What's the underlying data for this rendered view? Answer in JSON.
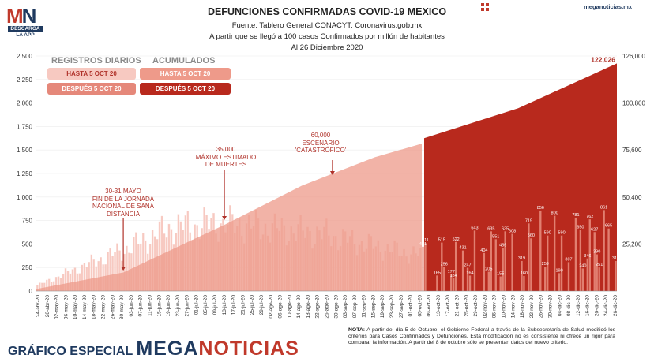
{
  "header": {
    "title": "DEFUNCIONES CONFIRMADAS COVID-19 MEXICO",
    "source": "Fuente: Tablero General CONACYT. Coronavirus.gob.mx",
    "subtitle": "A partir que se llegó a 100 casos Confirmados por millón de habitantes",
    "date": "Al 26 Diciembre 2020",
    "brand_url": "meganoticias.mx"
  },
  "logo": {
    "mark_m": "M",
    "mark_n": "N",
    "line1": "DESCARGA",
    "line2": "LA APP"
  },
  "legend": {
    "diarios_title": "REGISTROS DIARIOS",
    "acumulados_title": "ACUMULADOS",
    "hasta": "HASTA 5 OCT 20",
    "despues": "DESPUÉS 5 OCT 20"
  },
  "annotations": {
    "a1": [
      "30-31 MAYO",
      "FIN DE LA JORNADA",
      "NACIONAL DE SANA",
      "DISTANCIA"
    ],
    "a2": [
      "35,000",
      "MÁXIMO ESTIMADO",
      "DE MUERTES"
    ],
    "a3": [
      "60,000",
      "ESCENARIO",
      "'CATASTRÓFICO'"
    ]
  },
  "note": {
    "label": "NOTA:",
    "text": "A partir del día 5 de Octubre, el Gobierno Federal a través de la Subsecretaría de Salud modificó los criterios para Casos Confirmados y Defunciones. Esta modificación no es consistente ni ofrece un rigor para comparar la información. A partir del 8 de octubre sólo se presentan datos del nuevo criterio."
  },
  "footer": {
    "prefix": "GRÁFICO ESPECIAL",
    "brand_a": "MEGA",
    "brand_b": "NOTICIAS"
  },
  "colors": {
    "daily_before": "#f7c9c1",
    "daily_after": "#e5887a",
    "cumulative_before": "#ee9a8a",
    "cumulative_after": "#b8291d",
    "accent": "#b0322a",
    "navy": "#1f3a5f"
  },
  "chart_data": {
    "type": "bar",
    "start_date": "2020-04-24",
    "end_date": "2020-12-26",
    "split_date": "2020-10-05",
    "left_axis": {
      "ylim": [
        0,
        2500
      ],
      "ticks": [
        "0",
        "250",
        "500",
        "750",
        "1,000",
        "1,250",
        "1,500",
        "1,750",
        "2,000",
        "2,250",
        "2,500"
      ]
    },
    "right_axis": {
      "ylim": [
        0,
        126000
      ],
      "ticks": [
        "25,200",
        "50,400",
        "75,600",
        "100,800",
        "126,000"
      ]
    },
    "x_tick_labels": [
      "24-abr-20",
      "28-abr-20",
      "02-may-20",
      "06-may-20",
      "10-may-20",
      "14-may-20",
      "18-may-20",
      "22-may-20",
      "26-may-20",
      "30-may-20",
      "03-jun-20",
      "07-jun-20",
      "11-jun-20",
      "15-jun-20",
      "19-jun-20",
      "23-jun-20",
      "27-jun-20",
      "01-jul-20",
      "05-jul-20",
      "09-jul-20",
      "13-jul-20",
      "17-jul-20",
      "21-jul-20",
      "25-jul-20",
      "29-jul-20",
      "02-ago-20",
      "06-ago-20",
      "10-ago-20",
      "14-ago-20",
      "18-ago-20",
      "22-ago-20",
      "26-ago-20",
      "30-ago-20",
      "03-sep-20",
      "07-sep-20",
      "11-sep-20",
      "15-sep-20",
      "19-sep-20",
      "23-sep-20",
      "27-sep-20",
      "01-oct-20",
      "05-oct-20",
      "09-oct-20",
      "13-oct-20",
      "17-oct-20",
      "21-oct-20",
      "25-oct-20",
      "29-oct-20",
      "02-nov-20",
      "06-nov-20",
      "10-nov-20",
      "14-nov-20",
      "18-nov-20",
      "22-nov-20",
      "26-nov-20",
      "30-nov-20",
      "04-dic-20",
      "08-dic-20",
      "12-dic-20",
      "16-dic-20",
      "20-dic-20",
      "24-dic-20",
      "26-dic-20"
    ],
    "cumulative_points": [
      {
        "date": "2020-04-24",
        "value": 1070
      },
      {
        "date": "2020-05-31",
        "value": 9930
      },
      {
        "date": "2020-07-13",
        "value": 35490
      },
      {
        "date": "2020-08-15",
        "value": 56500
      },
      {
        "date": "2020-09-15",
        "value": 71700
      },
      {
        "date": "2020-10-05",
        "value": 79000
      },
      {
        "date": "2020-10-06",
        "value": 81900
      },
      {
        "date": "2020-11-15",
        "value": 98000
      },
      {
        "date": "2020-12-26",
        "value": 122026
      }
    ],
    "cumulative_final_label": "122,026",
    "daily_before_points": [
      {
        "date": "2020-04-24",
        "value": 60
      },
      {
        "date": "2020-05-15",
        "value": 280
      },
      {
        "date": "2020-06-01",
        "value": 450
      },
      {
        "date": "2020-06-20",
        "value": 680
      },
      {
        "date": "2020-07-10",
        "value": 720
      },
      {
        "date": "2020-07-25",
        "value": 690
      },
      {
        "date": "2020-08-10",
        "value": 640
      },
      {
        "date": "2020-08-25",
        "value": 600
      },
      {
        "date": "2020-09-10",
        "value": 500
      },
      {
        "date": "2020-09-25",
        "value": 420
      },
      {
        "date": "2020-10-04",
        "value": 380
      }
    ],
    "daily_after_labels": [
      {
        "date": "2020-10-05",
        "value": 471
      },
      {
        "date": "2020-10-06",
        "value": 511
      },
      {
        "date": "2020-10-11",
        "value": 165
      },
      {
        "date": "2020-10-13",
        "value": 515
      },
      {
        "date": "2020-10-14",
        "value": 256
      },
      {
        "date": "2020-10-17",
        "value": 177
      },
      {
        "date": "2020-10-19",
        "value": 522
      },
      {
        "date": "2020-10-18",
        "value": 134
      },
      {
        "date": "2020-10-22",
        "value": 431
      },
      {
        "date": "2020-10-24",
        "value": 247
      },
      {
        "date": "2020-10-25",
        "value": 164
      },
      {
        "date": "2020-10-27",
        "value": 643
      },
      {
        "date": "2020-10-31",
        "value": 404
      },
      {
        "date": "2020-11-02",
        "value": 205
      },
      {
        "date": "2020-11-03",
        "value": 635
      },
      {
        "date": "2020-11-05",
        "value": 551
      },
      {
        "date": "2020-11-07",
        "value": 155
      },
      {
        "date": "2020-11-08",
        "value": 456
      },
      {
        "date": "2020-11-09",
        "value": 635
      },
      {
        "date": "2020-11-12",
        "value": 608
      },
      {
        "date": "2020-11-16",
        "value": 319
      },
      {
        "date": "2020-11-17",
        "value": 160
      },
      {
        "date": "2020-11-19",
        "value": 719
      },
      {
        "date": "2020-11-20",
        "value": 560
      },
      {
        "date": "2020-11-24",
        "value": 856
      },
      {
        "date": "2020-11-26",
        "value": 259
      },
      {
        "date": "2020-11-27",
        "value": 590
      },
      {
        "date": "2020-11-30",
        "value": 800
      },
      {
        "date": "2020-12-02",
        "value": 190
      },
      {
        "date": "2020-12-03",
        "value": 590
      },
      {
        "date": "2020-12-06",
        "value": 307
      },
      {
        "date": "2020-12-09",
        "value": 781
      },
      {
        "date": "2020-12-11",
        "value": 650
      },
      {
        "date": "2020-12-12",
        "value": 240
      },
      {
        "date": "2020-12-14",
        "value": 346
      },
      {
        "date": "2020-12-15",
        "value": 762
      },
      {
        "date": "2020-12-17",
        "value": 627
      },
      {
        "date": "2020-12-18",
        "value": 390
      },
      {
        "date": "2020-12-19",
        "value": 251
      },
      {
        "date": "2020-12-21",
        "value": 861
      },
      {
        "date": "2020-12-23",
        "value": 665
      },
      {
        "date": "2020-12-26",
        "value": 319
      }
    ]
  }
}
